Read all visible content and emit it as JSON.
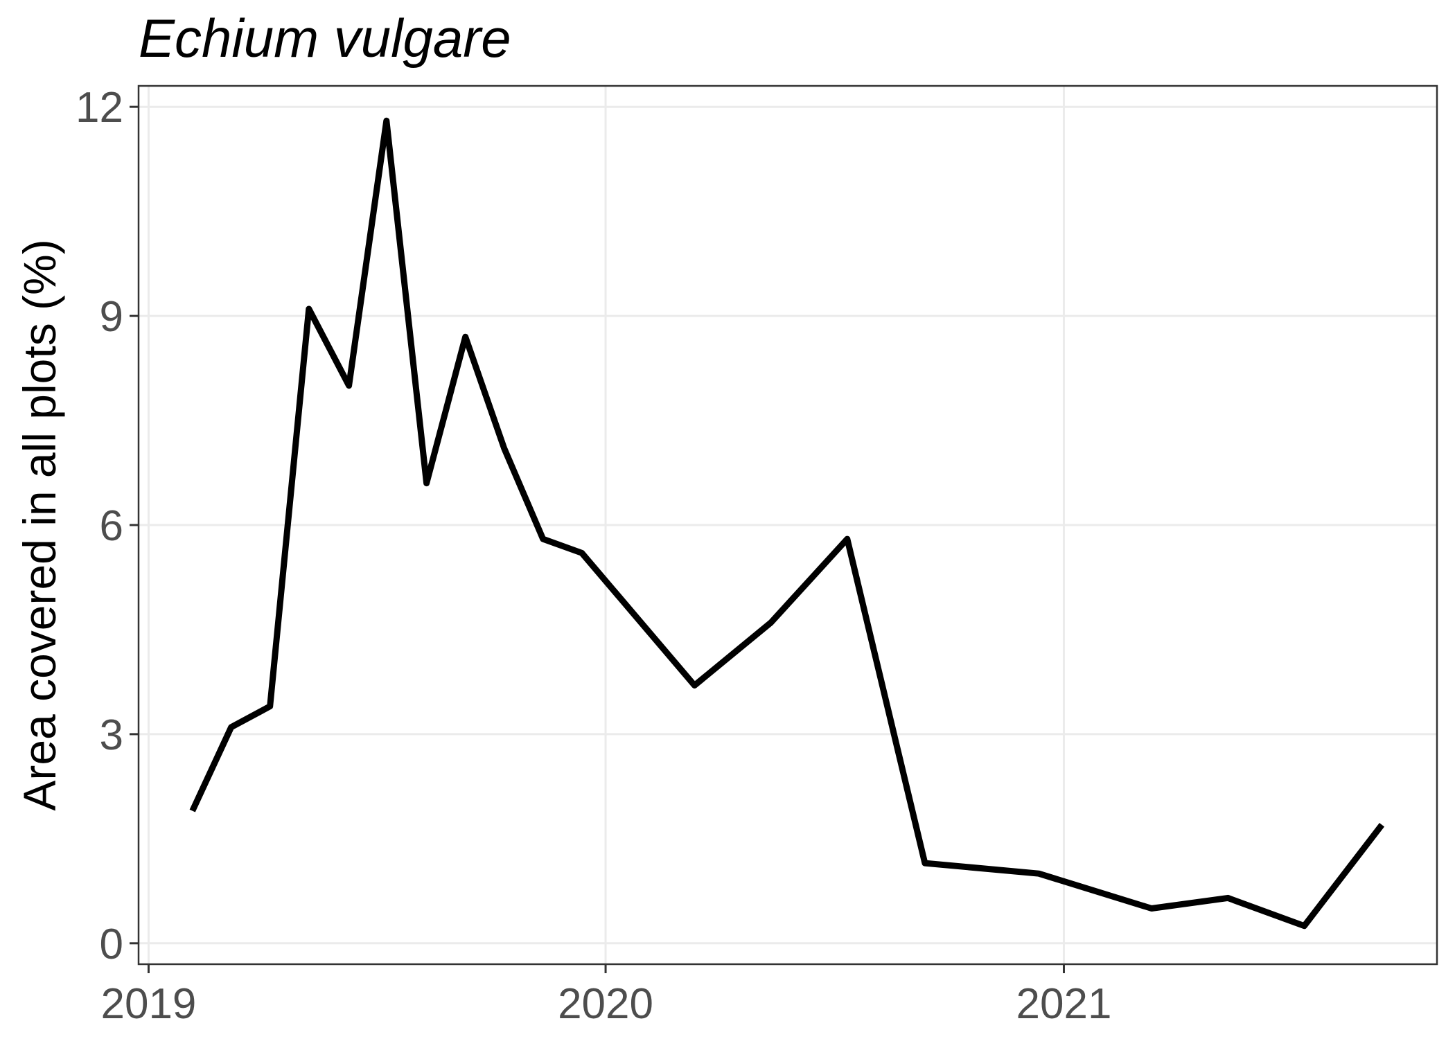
{
  "chart_data": {
    "type": "line",
    "title": "Echium vulgare",
    "xlabel": "",
    "ylabel": "Area covered in all plots (%)",
    "x_tick_labels": [
      "2019",
      "2020",
      "2021"
    ],
    "y_tick_labels": [
      "0",
      "3",
      "6",
      "9",
      "12"
    ],
    "x_range": [
      "2018-12-24",
      "2021-10-26"
    ],
    "ylim": [
      -0.3,
      12.3
    ],
    "x_ticks": [
      "2019-01-01",
      "2020-01-01",
      "2021-01-01"
    ],
    "y_ticks": [
      0,
      3,
      6,
      9,
      12
    ],
    "grid": true,
    "legend": "none",
    "line_color": "#000000",
    "series": [
      {
        "x": [
          "2019-02-05",
          "2019-03-08",
          "2019-04-08",
          "2019-05-09",
          "2019-06-10",
          "2019-07-10",
          "2019-08-11",
          "2019-09-11",
          "2019-10-12",
          "2019-11-12",
          "2019-12-13",
          "2020-03-12",
          "2020-05-12",
          "2020-07-12",
          "2020-09-12",
          "2020-12-12",
          "2021-03-12",
          "2021-05-12",
          "2021-07-12",
          "2021-09-12"
        ],
        "y": [
          1.9,
          3.1,
          3.4,
          9.1,
          8.0,
          11.8,
          6.6,
          8.7,
          7.1,
          5.8,
          5.6,
          3.7,
          4.6,
          5.8,
          1.15,
          1.0,
          0.5,
          0.65,
          0.25,
          1.7
        ]
      }
    ]
  }
}
